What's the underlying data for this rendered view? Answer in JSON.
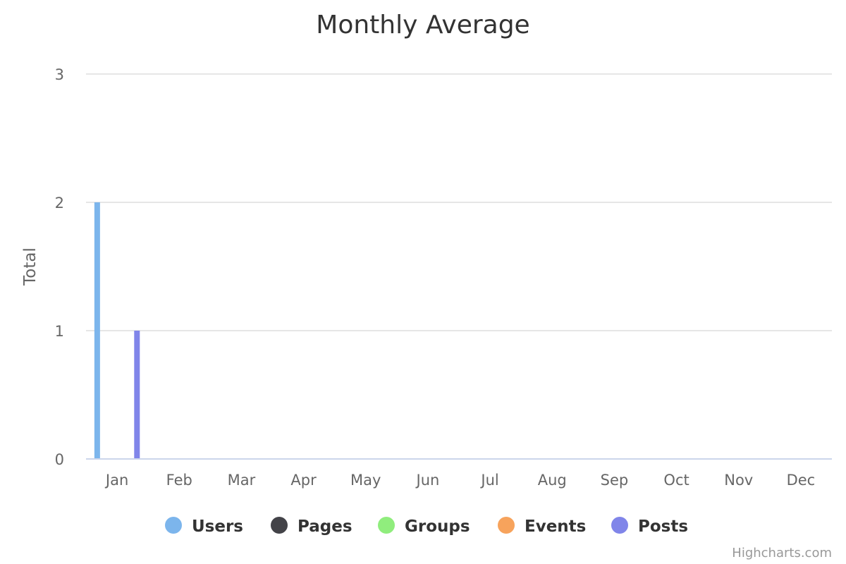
{
  "chart_data": {
    "type": "bar",
    "title": "Monthly Average",
    "ylabel": "Total",
    "xlabel": "",
    "categories": [
      "Jan",
      "Feb",
      "Mar",
      "Apr",
      "May",
      "Jun",
      "Jul",
      "Aug",
      "Sep",
      "Oct",
      "Nov",
      "Dec"
    ],
    "ylim": [
      0,
      3
    ],
    "yticks": [
      0,
      1,
      2,
      3
    ],
    "grid": true,
    "legend_placement": "bottom-center",
    "series": [
      {
        "name": "Users",
        "color": "#7cb5ec",
        "values": [
          2,
          0,
          0,
          0,
          0,
          0,
          0,
          0,
          0,
          0,
          0,
          0
        ]
      },
      {
        "name": "Pages",
        "color": "#434348",
        "values": [
          0,
          0,
          0,
          0,
          0,
          0,
          0,
          0,
          0,
          0,
          0,
          0
        ]
      },
      {
        "name": "Groups",
        "color": "#90ed7d",
        "values": [
          0,
          0,
          0,
          0,
          0,
          0,
          0,
          0,
          0,
          0,
          0,
          0
        ]
      },
      {
        "name": "Events",
        "color": "#f7a35c",
        "values": [
          0,
          0,
          0,
          0,
          0,
          0,
          0,
          0,
          0,
          0,
          0,
          0
        ]
      },
      {
        "name": "Posts",
        "color": "#8085e9",
        "values": [
          1,
          0,
          0,
          0,
          0,
          0,
          0,
          0,
          0,
          0,
          0,
          0
        ]
      }
    ]
  },
  "credits": "Highcharts.com"
}
